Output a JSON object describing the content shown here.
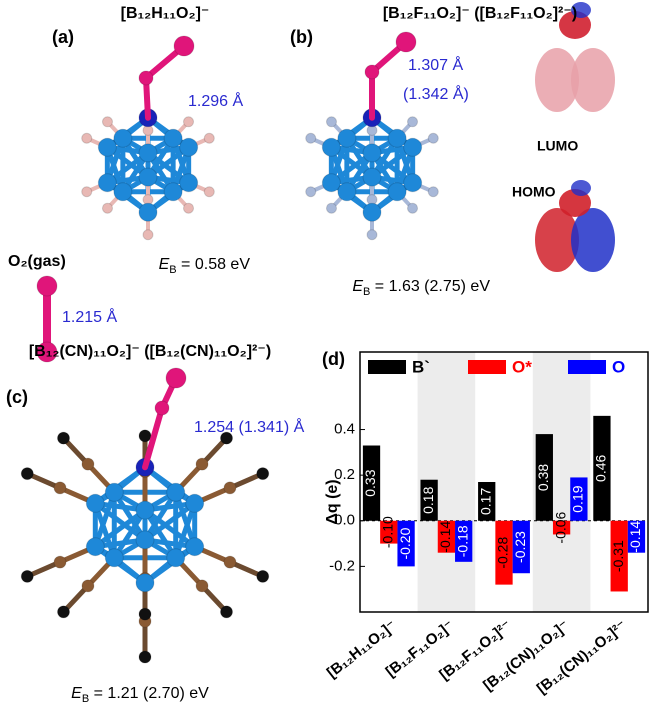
{
  "panels": {
    "a": {
      "label": "(a)",
      "title": "[B₁₂H₁₁O₂]⁻",
      "bond": "1.296 Å",
      "energy": {
        "symbol": "E",
        "subscript": "B",
        "text": " = 0.58 eV"
      },
      "gas_label": "O₂(gas)",
      "gas_bond": "1.215 Å"
    },
    "b": {
      "label": "(b)",
      "title": "[B₁₂F₁₁O₂]⁻ ([B₁₂F₁₁O₂]²⁻)",
      "bond": "1.307 Å",
      "bond2": "(1.342 Å)",
      "energy": {
        "symbol": "E",
        "subscript": "B",
        "text": " = 1.63 (2.75) eV"
      },
      "lumo": "LUMO",
      "homo": "HOMO"
    },
    "c": {
      "label": "(c)",
      "title": "[B₁₂(CN)₁₁O₂]⁻ ([B₁₂(CN)₁₁O₂]²⁻)",
      "bond": "1.254 (1.341) Å",
      "energy": {
        "symbol": "E",
        "subscript": "B",
        "text": " = 1.21 (2.70) eV"
      }
    },
    "d": {
      "label": "(d)"
    }
  },
  "chart_data": {
    "type": "bar",
    "categories": [
      "[B₁₂H₁₁O₂]⁻",
      "[B₁₂F₁₁O₂]⁻",
      "[B₁₂F₁₁O₂]²⁻",
      "[B₁₂(CN)₁₁O₂]⁻",
      "[B₁₂(CN)₁₁O₂]²⁻"
    ],
    "series": [
      {
        "name": "B`",
        "color": "#000000",
        "values": [
          0.33,
          0.18,
          0.17,
          0.38,
          0.46
        ],
        "value_labels": [
          "0.33",
          "0.18",
          "0.17",
          "0.38",
          "0.46"
        ]
      },
      {
        "name": "O*",
        "color": "#ff0000",
        "values": [
          -0.1,
          -0.14,
          -0.28,
          -0.06,
          -0.31
        ],
        "value_labels": [
          "-0.10",
          "-0.14",
          "-0.28",
          "-0.06",
          "-0.31"
        ]
      },
      {
        "name": "O",
        "color": "#0000ff",
        "values": [
          -0.2,
          -0.18,
          -0.23,
          0.19,
          -0.14
        ],
        "value_labels": [
          "-0.20",
          "-0.18",
          "-0.23",
          "0.19",
          "-0.14"
        ]
      }
    ],
    "ylabel": "Δq (e)",
    "ylim": [
      -0.4,
      0.74
    ],
    "yticks": [
      -0.2,
      {
        "value": 0,
        "label": "0.0"
      },
      0.2,
      0.4
    ]
  }
}
